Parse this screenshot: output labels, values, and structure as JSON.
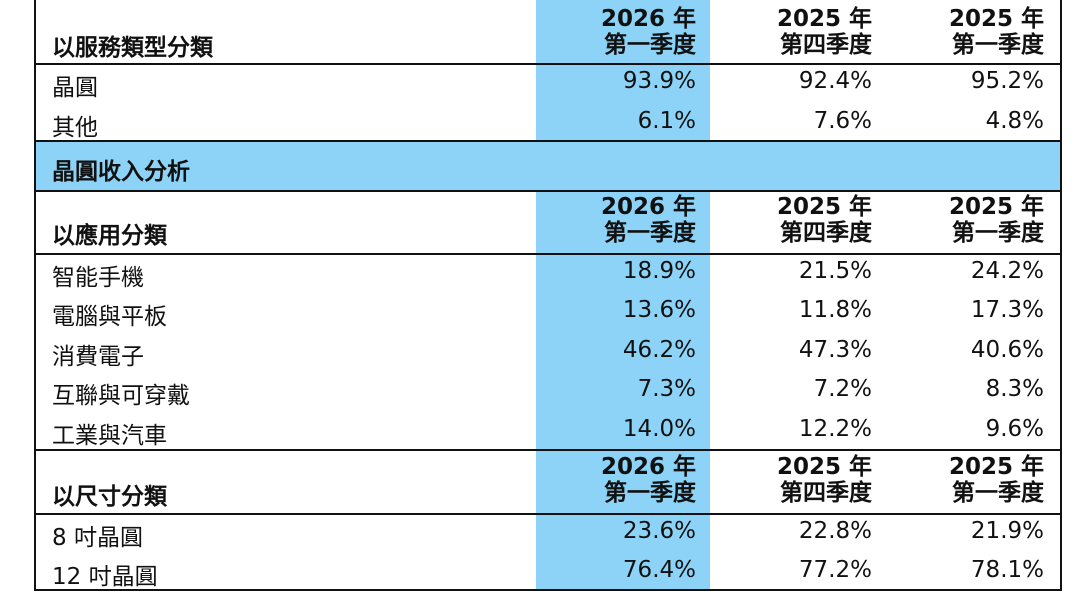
{
  "columns": [
    {
      "year": "2026 年",
      "quarter": "第一季度"
    },
    {
      "year": "2025 年",
      "quarter": "第四季度"
    },
    {
      "year": "2025 年",
      "quarter": "第一季度"
    }
  ],
  "service": {
    "title": "以服務類型分類",
    "rows": [
      {
        "label": "晶圓",
        "values": [
          "93.9%",
          "92.4%",
          "95.2%"
        ]
      },
      {
        "label": "其他",
        "values": [
          "6.1%",
          "7.6%",
          "4.8%"
        ]
      }
    ]
  },
  "wafer_section_title": "晶圓收入分析",
  "application": {
    "title": "以應用分類",
    "rows": [
      {
        "label": "智能手機",
        "values": [
          "18.9%",
          "21.5%",
          "24.2%"
        ]
      },
      {
        "label": "電腦與平板",
        "values": [
          "13.6%",
          "11.8%",
          "17.3%"
        ]
      },
      {
        "label": "消費電子",
        "values": [
          "46.2%",
          "47.3%",
          "40.6%"
        ]
      },
      {
        "label": "互聯與可穿戴",
        "values": [
          "7.3%",
          "7.2%",
          "8.3%"
        ]
      },
      {
        "label": "工業與汽車",
        "values": [
          "14.0%",
          "12.2%",
          "9.6%"
        ]
      }
    ]
  },
  "size": {
    "title": "以尺寸分類",
    "rows": [
      {
        "label": "8 吋晶圓",
        "values": [
          "23.6%",
          "22.8%",
          "21.9%"
        ]
      },
      {
        "label": "12 吋晶圓",
        "values": [
          "76.4%",
          "77.2%",
          "78.1%"
        ]
      }
    ]
  }
}
